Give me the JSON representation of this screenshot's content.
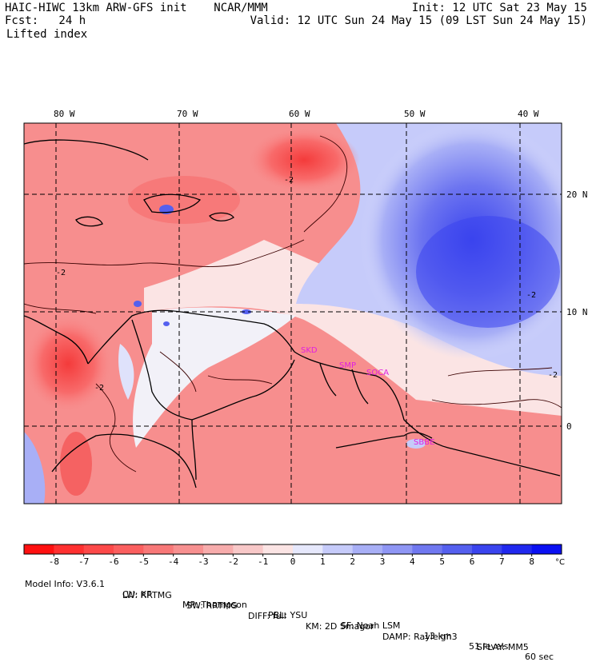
{
  "header": {
    "title": "HAIC-HIWC 13km ARW-GFS init    NCAR/MMM",
    "init": "Init: 12 UTC Sat 23 May 15",
    "fcst": "Fcst:   24 h",
    "valid": "Valid: 12 UTC Sun 24 May 15 (09 LST Sun 24 May 15)",
    "field": "Lifted index"
  },
  "map": {
    "lon_labels": [
      "80 W",
      "70 W",
      "60 W",
      "50 W",
      "40 W"
    ],
    "lat_labels": [
      "20 N",
      "10 N",
      "0"
    ],
    "stations": [
      "SKD",
      "SMP",
      "SOCA",
      "SBBE"
    ],
    "contour_labels": [
      "-2",
      "-2",
      "-2",
      "-2",
      "-2"
    ]
  },
  "colorbar": {
    "ticks": [
      "-8",
      "-7",
      "-6",
      "-5",
      "-4",
      "-3",
      "-2",
      "-1",
      "0",
      "1",
      "2",
      "3",
      "4",
      "5",
      "6",
      "7",
      "8"
    ],
    "unit": "°C",
    "colors": [
      "#ff1010",
      "#ff3030",
      "#fd4949",
      "#fb5f5f",
      "#f87878",
      "#f79090",
      "#f7acac",
      "#f8c8c8",
      "#fbe4e4",
      "#e6e8fc",
      "#c6cbfa",
      "#a8aff6",
      "#8f96f4",
      "#7078f0",
      "#5560ef",
      "#3a44ee",
      "#2028ee",
      "#0a10f2"
    ]
  },
  "footer": {
    "line1": [
      "Model Info: V3.6.1",
      "CU: KF",
      "MP: Thompson",
      "PBL: YSU",
      "SF: Noah LSM",
      "13 km",
      "51 levels",
      "60 sec"
    ],
    "line2": [
      "LW: RRTMG",
      "SW: RRTMG",
      "DIFF: full",
      "KM: 2D Smagor",
      "DAMP: Rayleigh3",
      "SFLAY: MM5"
    ]
  }
}
